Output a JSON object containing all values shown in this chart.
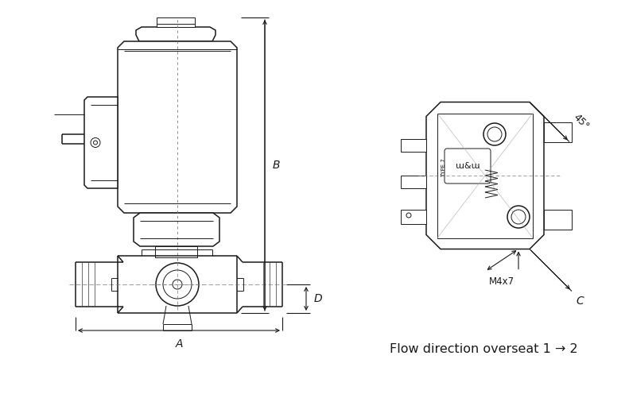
{
  "bg_color": "#ffffff",
  "line_color": "#1a1a1a",
  "dim_color": "#1a1a1a",
  "text_color": "#1a1a1a",
  "flow_text": "Flow direction overseat 1 → 2",
  "label_B": "B",
  "label_A": "A",
  "label_D": "D",
  "label_C": "C",
  "label_M4x7": "M4x7",
  "label_45": "45°"
}
